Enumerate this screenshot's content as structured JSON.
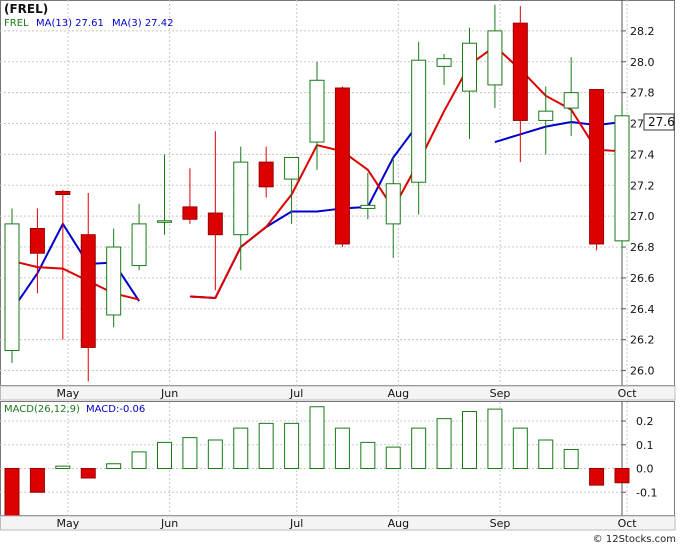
{
  "chart_data": [
    {
      "type": "candlestick",
      "title": "(FREL)",
      "legend": [
        {
          "label": "FREL",
          "color": "#1a7a1a"
        },
        {
          "label": "MA(13)  27.61",
          "color": "#0000cc"
        },
        {
          "label": "MA(3)  27.42",
          "color": "#0000cc"
        }
      ],
      "ylim": [
        25.9,
        28.4
      ],
      "y_ticks": [
        26.0,
        26.2,
        26.4,
        26.6,
        26.8,
        27.0,
        27.2,
        27.4,
        27.6,
        27.8,
        28.0,
        28.2
      ],
      "last_value_label": "27.6",
      "x_ticks": [
        {
          "label": "May",
          "x": 2.2
        },
        {
          "label": "Jun",
          "x": 6.2
        },
        {
          "label": "Jul",
          "x": 11.2
        },
        {
          "label": "Aug",
          "x": 15.2
        },
        {
          "label": "Sep",
          "x": 19.2
        },
        {
          "label": "Oct",
          "x": 24.2
        }
      ],
      "grid": true,
      "up_color": "#1a7a1a",
      "down_color": "#dd0000",
      "candles": [
        {
          "o": 26.13,
          "h": 27.05,
          "l": 26.05,
          "c": 26.95
        },
        {
          "o": 26.92,
          "h": 27.05,
          "l": 26.5,
          "c": 26.76
        },
        {
          "o": 27.16,
          "h": 27.17,
          "l": 26.2,
          "c": 27.14
        },
        {
          "o": 26.88,
          "h": 27.15,
          "l": 25.93,
          "c": 26.15
        },
        {
          "o": 26.36,
          "h": 26.92,
          "l": 26.28,
          "c": 26.8
        },
        {
          "o": 26.68,
          "h": 27.08,
          "l": 26.65,
          "c": 26.95
        },
        {
          "o": 26.96,
          "h": 27.4,
          "l": 26.88,
          "c": 26.97
        },
        {
          "o": 27.06,
          "h": 27.31,
          "l": 26.95,
          "c": 26.98
        },
        {
          "o": 27.02,
          "h": 27.55,
          "l": 26.52,
          "c": 26.88
        },
        {
          "o": 26.88,
          "h": 27.45,
          "l": 26.65,
          "c": 27.35
        },
        {
          "o": 27.35,
          "h": 27.45,
          "l": 27.12,
          "c": 27.19
        },
        {
          "o": 27.24,
          "h": 27.38,
          "l": 26.95,
          "c": 27.38
        },
        {
          "o": 27.48,
          "h": 28.0,
          "l": 27.3,
          "c": 27.88
        },
        {
          "o": 27.83,
          "h": 27.84,
          "l": 26.8,
          "c": 26.82
        },
        {
          "o": 27.05,
          "h": 27.28,
          "l": 26.98,
          "c": 27.07
        },
        {
          "o": 26.95,
          "h": 27.38,
          "l": 26.73,
          "c": 27.21
        },
        {
          "o": 27.22,
          "h": 28.13,
          "l": 27.01,
          "c": 28.01
        },
        {
          "o": 27.97,
          "h": 28.05,
          "l": 27.85,
          "c": 28.02
        },
        {
          "o": 27.81,
          "h": 28.22,
          "l": 27.5,
          "c": 28.12
        },
        {
          "o": 27.85,
          "h": 28.37,
          "l": 27.7,
          "c": 28.2
        },
        {
          "o": 28.25,
          "h": 28.36,
          "l": 27.35,
          "c": 27.62
        },
        {
          "o": 27.62,
          "h": 27.84,
          "l": 27.4,
          "c": 27.68
        },
        {
          "o": 27.7,
          "h": 28.03,
          "l": 27.52,
          "c": 27.8
        },
        {
          "o": 27.82,
          "h": 27.82,
          "l": 26.78,
          "c": 26.82
        },
        {
          "o": 26.84,
          "h": 27.72,
          "l": 26.77,
          "c": 27.65
        }
      ],
      "ma13": {
        "start": 0,
        "color": "#0000cc",
        "values": [
          26.39,
          26.63,
          26.95,
          26.69,
          26.7,
          26.45,
          null,
          26.48,
          26.47,
          26.8,
          26.93,
          27.03,
          27.03,
          27.05,
          27.06,
          27.38,
          27.6,
          null,
          null,
          27.48,
          27.53,
          27.58,
          27.61,
          27.59,
          27.61
        ]
      },
      "ma3": {
        "start": 0,
        "color": "#dd0000",
        "values": [
          26.71,
          26.67,
          26.66,
          26.58,
          26.5,
          26.46,
          null,
          26.48,
          26.47,
          26.8,
          26.93,
          27.14,
          27.46,
          27.42,
          27.3,
          27.05,
          27.35,
          27.68,
          27.98,
          28.1,
          27.95,
          27.78,
          27.69,
          27.43,
          27.42
        ]
      }
    },
    {
      "type": "bar",
      "title": "MACD(26,12,9)",
      "legend": [
        {
          "label": "MACD(26,12,9)",
          "color": "#1a7a1a"
        },
        {
          "label": "MACD:-0.06",
          "color": "#0000cc"
        }
      ],
      "ylim": [
        -0.2,
        0.28
      ],
      "y_ticks": [
        0.2,
        0.1,
        0.0,
        -0.1
      ],
      "y_tick_labels": [
        "0.2",
        "0.1",
        "0.0",
        "-0.1"
      ],
      "x_ticks": [
        {
          "label": "May",
          "x": 2.2
        },
        {
          "label": "Jun",
          "x": 6.2
        },
        {
          "label": "Jul",
          "x": 11.2
        },
        {
          "label": "Aug",
          "x": 15.2
        },
        {
          "label": "Sep",
          "x": 19.2
        },
        {
          "label": "Oct",
          "x": 24.2
        }
      ],
      "values": [
        -0.2,
        -0.1,
        0.01,
        -0.04,
        0.02,
        0.07,
        0.11,
        0.13,
        0.12,
        0.17,
        0.19,
        0.19,
        0.26,
        0.17,
        0.11,
        0.09,
        0.17,
        0.21,
        0.24,
        0.25,
        0.17,
        0.12,
        0.08,
        -0.07,
        -0.06
      ]
    }
  ],
  "watermark": "© 12Stocks.com"
}
